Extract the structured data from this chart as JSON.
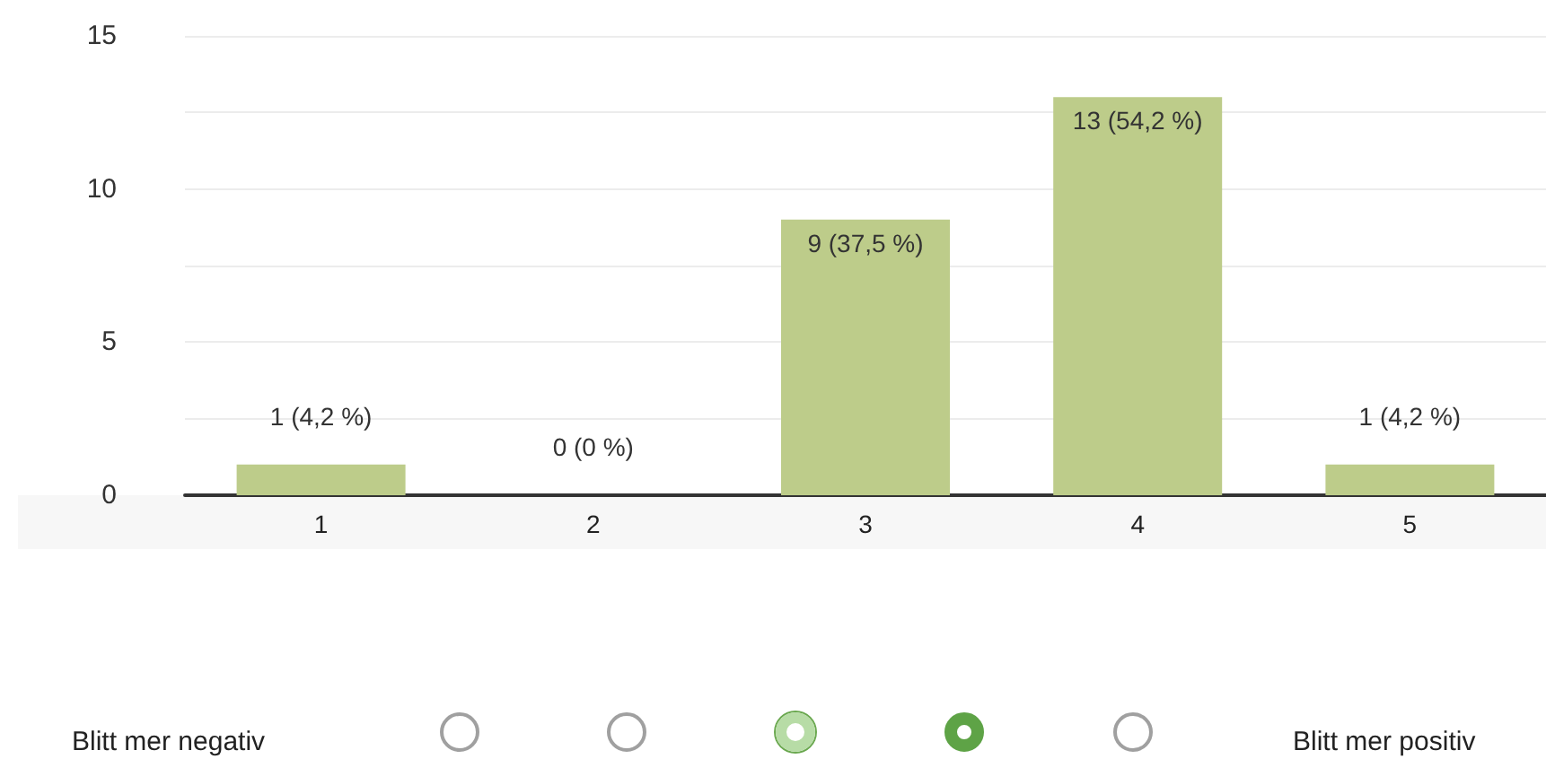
{
  "chart_data": {
    "type": "bar",
    "categories": [
      "1",
      "2",
      "3",
      "4",
      "5"
    ],
    "values": [
      1,
      0,
      9,
      13,
      1
    ],
    "value_labels": [
      "1 (4,2 %)",
      "0 (0 %)",
      "9 (37,5 %)",
      "13 (54,2 %)",
      "1 (4,2 %)"
    ],
    "color": "#bdcc8a",
    "ylim": [
      0,
      15
    ],
    "yticks": [
      0,
      {
        "value": 2.5,
        "label": null
      },
      5,
      {
        "value": 7.5,
        "label": null
      },
      10,
      {
        "value": 12.5,
        "label": null
      },
      15
    ],
    "grid": "y",
    "annotations": [
      "Blitt mer negativ",
      "Blitt mer positiv"
    ]
  }
}
